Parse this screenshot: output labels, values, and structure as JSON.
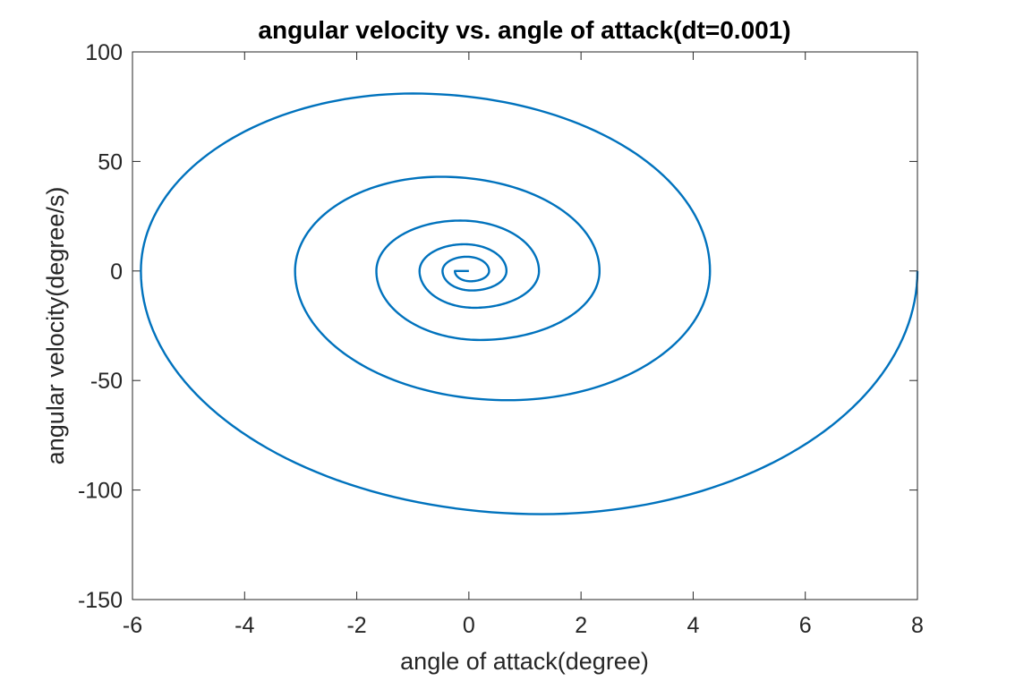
{
  "chart_data": {
    "type": "line",
    "title": "angular velocity vs. angle of attack(dt=0.001)",
    "xlabel": "angle of attack(degree)",
    "ylabel": "angular velocity(degree/s)",
    "xlim": [
      -6,
      8
    ],
    "ylim": [
      -150,
      100
    ],
    "xticks": [
      -6,
      -4,
      -2,
      0,
      2,
      4,
      6,
      8
    ],
    "yticks": [
      -150,
      -100,
      -50,
      0,
      50,
      100
    ],
    "xtick_labels": [
      "-6",
      "-4",
      "-2",
      "0",
      "2",
      "4",
      "6",
      "8"
    ],
    "ytick_labels": [
      "-150",
      "-100",
      "-50",
      "0",
      "50",
      "100"
    ],
    "grid": false,
    "legend": "none",
    "series": [
      {
        "color": "#0072BD",
        "description_points": {
          "x": [
            8.0,
            1.3,
            -5.85,
            -1.0,
            4.3,
            0.7,
            -3.1,
            -0.5,
            2.33,
            0.2,
            -1.65,
            -0.15,
            1.25,
            0.1,
            -0.88,
            -0.08,
            0.67,
            0.05,
            -0.47,
            -0.04,
            0.36,
            0.03,
            -0.25,
            0.0
          ],
          "y": [
            0.0,
            -111.0,
            0.0,
            81.0,
            0.0,
            -59.0,
            0.0,
            43.0,
            0.0,
            -31.5,
            0.0,
            23.0,
            0.0,
            -16.8,
            0.0,
            12.2,
            0.0,
            -8.9,
            0.0,
            6.5,
            0.0,
            -4.7,
            0.0,
            0.0
          ]
        }
      }
    ]
  }
}
